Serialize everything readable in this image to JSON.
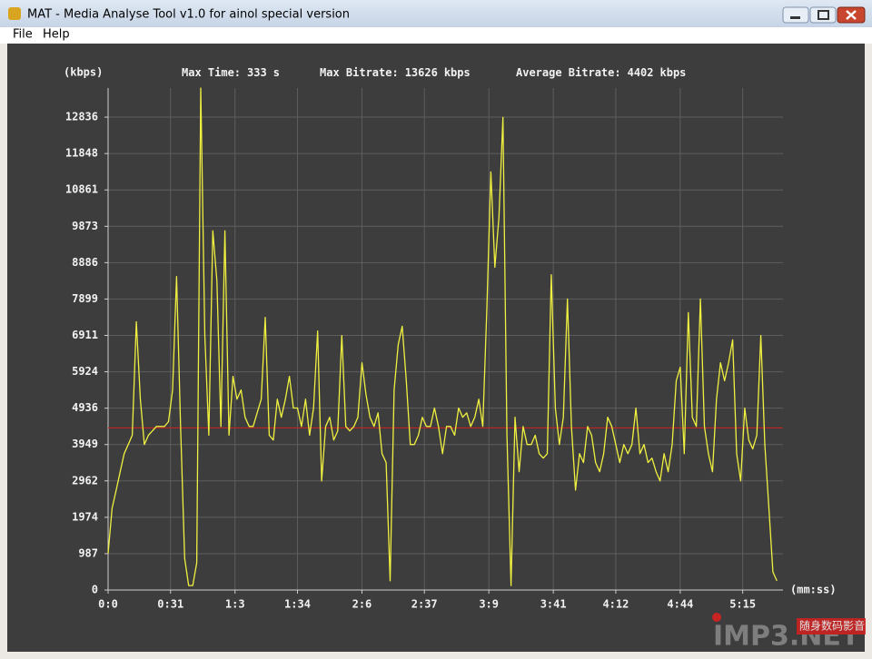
{
  "window": {
    "title": "MAT - Media Analyse Tool v1.0 for ainol special version"
  },
  "menu": [
    "File",
    "Help"
  ],
  "chart_data": {
    "type": "line",
    "y_unit_label": "(kbps)",
    "x_unit_label": "(mm:ss)",
    "stats": [
      {
        "label": "Max Time:",
        "value": 333,
        "unit": "s"
      },
      {
        "label": "Max Bitrate:",
        "value": 13626,
        "unit": "kbps"
      },
      {
        "label": "Average Bitrate:",
        "value": 4402,
        "unit": "kbps"
      }
    ],
    "average_line_color": "#d02020",
    "xlim": [
      0,
      335
    ],
    "ylim": [
      0,
      13626
    ],
    "xticks": [
      {
        "value": 0,
        "label": "0:0"
      },
      {
        "value": 31,
        "label": "0:31"
      },
      {
        "value": 63,
        "label": "1:3"
      },
      {
        "value": 94,
        "label": "1:34"
      },
      {
        "value": 126,
        "label": "2:6"
      },
      {
        "value": 157,
        "label": "2:37"
      },
      {
        "value": 189,
        "label": "3:9"
      },
      {
        "value": 221,
        "label": "3:41"
      },
      {
        "value": 252,
        "label": "4:12"
      },
      {
        "value": 284,
        "label": "4:44"
      },
      {
        "value": 315,
        "label": "5:15"
      }
    ],
    "yticks": [
      0,
      987,
      1974,
      2962,
      3949,
      4936,
      5924,
      6911,
      7899,
      8886,
      9873,
      10861,
      11848,
      12836
    ],
    "grid": true,
    "x": [
      0,
      2,
      4,
      6,
      8,
      10,
      12,
      14,
      16,
      18,
      20,
      22,
      24,
      26,
      28,
      30,
      32,
      34,
      36,
      38,
      40,
      42,
      44,
      46,
      48,
      50,
      52,
      54,
      56,
      58,
      60,
      62,
      64,
      66,
      68,
      70,
      72,
      74,
      76,
      78,
      80,
      82,
      84,
      86,
      88,
      90,
      92,
      94,
      96,
      98,
      100,
      102,
      104,
      106,
      108,
      110,
      112,
      114,
      116,
      118,
      120,
      122,
      124,
      126,
      128,
      130,
      132,
      134,
      136,
      138,
      140,
      142,
      144,
      146,
      148,
      150,
      152,
      154,
      156,
      158,
      160,
      162,
      164,
      166,
      168,
      170,
      172,
      174,
      176,
      178,
      180,
      182,
      184,
      186,
      188,
      190,
      192,
      194,
      196,
      198,
      200,
      202,
      204,
      206,
      208,
      210,
      212,
      214,
      216,
      218,
      220,
      222,
      224,
      226,
      228,
      230,
      232,
      234,
      236,
      238,
      240,
      242,
      244,
      246,
      248,
      250,
      252,
      254,
      256,
      258,
      260,
      262,
      264,
      266,
      268,
      270,
      272,
      274,
      276,
      278,
      280,
      282,
      284,
      286,
      288,
      290,
      292,
      294,
      296,
      298,
      300,
      302,
      304,
      306,
      308,
      310,
      312,
      314,
      316,
      318,
      320,
      322,
      324,
      326,
      328,
      330,
      332
    ],
    "series": [
      {
        "name": "Bitrate",
        "color": "#f0f040",
        "values": [
          990,
          2220,
          2710,
          3210,
          3700,
          3950,
          4200,
          7280,
          5180,
          3950,
          4200,
          4320,
          4440,
          4440,
          4440,
          4570,
          5430,
          8510,
          4440,
          860,
          120,
          120,
          740,
          13626,
          6910,
          4200,
          9750,
          8390,
          4440,
          9750,
          4200,
          5800,
          5180,
          5430,
          4690,
          4440,
          4440,
          4810,
          5180,
          7400,
          4200,
          4070,
          5180,
          4690,
          5180,
          5800,
          4940,
          4940,
          4440,
          5180,
          4200,
          4940,
          7030,
          2960,
          4440,
          4690,
          4070,
          4320,
          6910,
          4440,
          4320,
          4440,
          4690,
          6170,
          5310,
          4690,
          4440,
          4810,
          3700,
          3460,
          250,
          5430,
          6660,
          7160,
          5680,
          3950,
          3950,
          4200,
          4690,
          4440,
          4440,
          4940,
          4440,
          3700,
          4440,
          4440,
          4200,
          4940,
          4690,
          4810,
          4440,
          4690,
          5180,
          4440,
          7650,
          11350,
          8760,
          10120,
          12830,
          4200,
          120,
          4690,
          3210,
          4440,
          3950,
          3950,
          4200,
          3700,
          3580,
          3700,
          8560,
          4940,
          3950,
          4690,
          7900,
          4440,
          2710,
          3700,
          3460,
          4440,
          4200,
          3460,
          3210,
          3700,
          4690,
          4440,
          3950,
          3460,
          3950,
          3700,
          3950,
          4940,
          3700,
          3950,
          3460,
          3580,
          3210,
          2960,
          3700,
          3210,
          3950,
          5680,
          6050,
          3700,
          7530,
          4690,
          4440,
          7900,
          4440,
          3700,
          3210,
          5180,
          6170,
          5680,
          6170,
          6790,
          3700,
          2960,
          4940,
          4070,
          3830,
          4200,
          6910,
          3950,
          2220,
          490,
          250
        ]
      }
    ]
  },
  "watermark": {
    "brand": "IMP3.NET",
    "caption": "随身数码影音"
  }
}
